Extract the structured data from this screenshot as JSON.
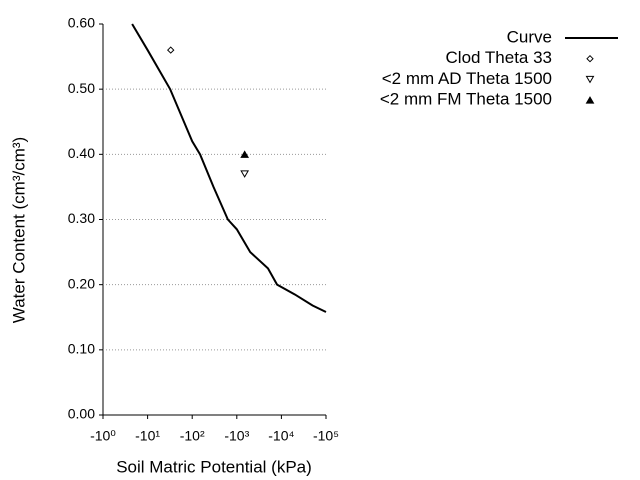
{
  "chart_data": {
    "type": "line",
    "x_label": "Soil Matric Potential (kPa)",
    "y_label": "Water Content (cm³/cm³)",
    "xscale": "log",
    "xlim": [
      -1,
      -100000
    ],
    "xticks": [
      {
        "value": -1,
        "label": "-10⁰"
      },
      {
        "value": -10,
        "label": "-10¹"
      },
      {
        "value": -100,
        "label": "-10²"
      },
      {
        "value": -1000,
        "label": "-10³"
      },
      {
        "value": -10000,
        "label": "-10⁴"
      },
      {
        "value": -100000,
        "label": "-10⁵"
      }
    ],
    "ylim": [
      0,
      0.6
    ],
    "yticks": [
      {
        "value": 0,
        "label": "0.00"
      },
      {
        "value": 0.1,
        "label": "0.10"
      },
      {
        "value": 0.2,
        "label": "0.20"
      },
      {
        "value": 0.3,
        "label": "0.30"
      },
      {
        "value": 0.4,
        "label": "0.40"
      },
      {
        "value": 0.5,
        "label": "0.50"
      },
      {
        "value": 0.6,
        "label": "0.60"
      }
    ],
    "grid": true,
    "legend": "top-right",
    "series": [
      {
        "name": "Curve",
        "color": "#000000",
        "marker": "none",
        "x": [
          -4.5,
          -10,
          -32,
          -100,
          -150,
          -300,
          -630,
          -1000,
          -2000,
          -5000,
          -8000,
          -20000,
          -50000,
          -100000
        ],
        "values": [
          0.6,
          0.56,
          0.5,
          0.42,
          0.4,
          0.35,
          0.3,
          0.285,
          0.25,
          0.225,
          0.2,
          0.185,
          0.168,
          0.158
        ]
      },
      {
        "name": "Clod Theta 33",
        "color": "#000000",
        "marker": "diamond",
        "x": [
          -33
        ],
        "values": [
          0.56
        ]
      },
      {
        "name": "<2 mm AD Theta 1500",
        "color": "#000000",
        "marker": "triangle-down",
        "x": [
          -1500
        ],
        "values": [
          0.37
        ]
      },
      {
        "name": "<2 mm FM Theta 1500",
        "color": "#000000",
        "marker": "triangle-up",
        "x": [
          -1500
        ],
        "values": [
          0.4
        ]
      }
    ]
  }
}
